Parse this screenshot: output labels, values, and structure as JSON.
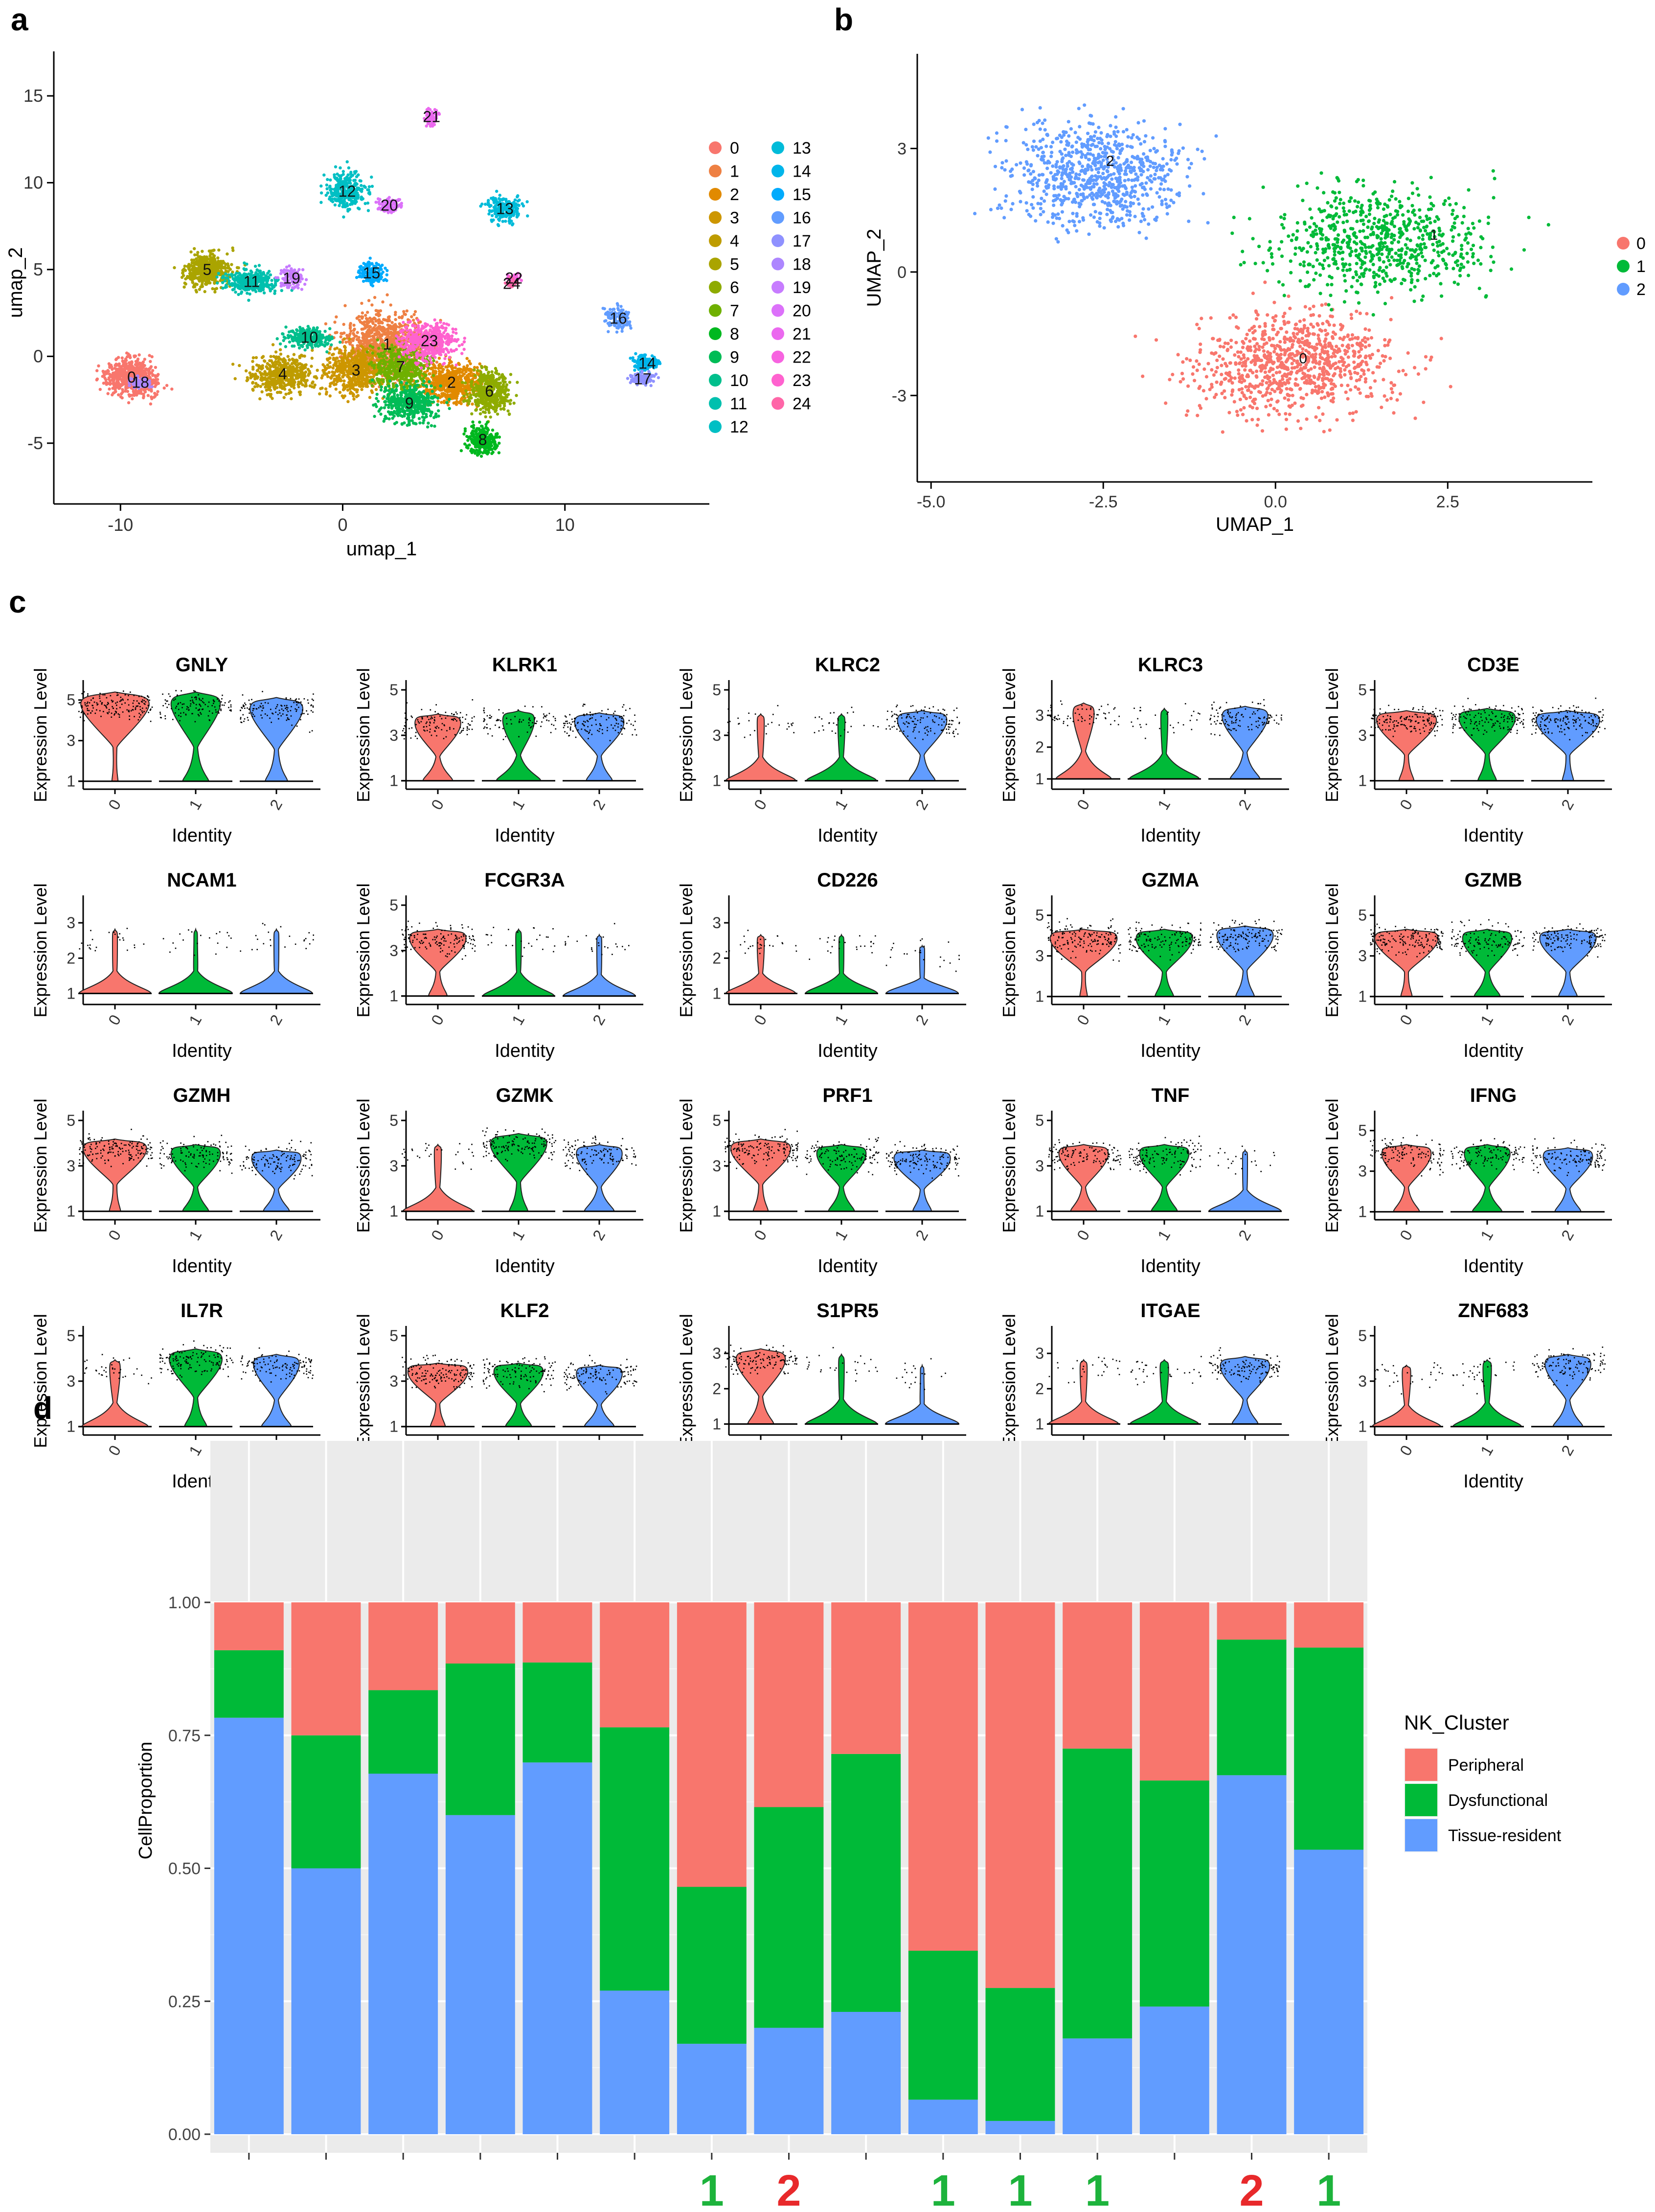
{
  "panel_labels": [
    "a",
    "b",
    "c",
    "d"
  ],
  "colors": {
    "c0": "#F8766D",
    "c1": "#00BA38",
    "c2": "#619CFF",
    "grid_bg": "#EBEBEB",
    "grid_line": "#FFFFFF",
    "red_mark": "#E8292B",
    "green_mark": "#1DB33C"
  },
  "chart_data": [
    {
      "id": "a",
      "type": "scatter",
      "xlabel": "umap_1",
      "ylabel": "umap_2",
      "xticks": [
        "-10",
        "0",
        "10"
      ],
      "yticks": [
        "-5",
        "0",
        "5",
        "10",
        "15"
      ],
      "xlim": [
        -13,
        16.5
      ],
      "ylim": [
        -8.5,
        17
      ],
      "legend": [
        "0",
        "1",
        "2",
        "3",
        "4",
        "5",
        "6",
        "7",
        "8",
        "9",
        "10",
        "11",
        "12",
        "13",
        "14",
        "15",
        "16",
        "17",
        "18",
        "19",
        "20",
        "21",
        "22",
        "23",
        "24"
      ],
      "legend_colors": [
        "#F8766D",
        "#EE8043",
        "#E18A00",
        "#CD9600",
        "#BE9C00",
        "#AAA400",
        "#8EAB00",
        "#6FB000",
        "#00B81F",
        "#00BC56",
        "#00BF8C",
        "#00C0AE",
        "#00BFC4",
        "#00BBD9",
        "#00B5EA",
        "#00ABFD",
        "#619CFF",
        "#8F91FF",
        "#AD86FF",
        "#C77CFF",
        "#DC71FA",
        "#EB69EF",
        "#F763E0",
        "#FF62CF",
        "#FF66A8"
      ],
      "cluster_label_points": [
        {
          "id": "0",
          "x": -9.5,
          "y": -1.2
        },
        {
          "id": "18",
          "x": -9.1,
          "y": -1.5
        },
        {
          "id": "1",
          "x": 2,
          "y": 0.7
        },
        {
          "id": "2",
          "x": 4.9,
          "y": -1.5
        },
        {
          "id": "3",
          "x": 0.6,
          "y": -0.8
        },
        {
          "id": "4",
          "x": -2.7,
          "y": -1.0
        },
        {
          "id": "5",
          "x": -6.1,
          "y": 5.0
        },
        {
          "id": "6",
          "x": 6.6,
          "y": -2.0
        },
        {
          "id": "7",
          "x": 2.6,
          "y": -0.6
        },
        {
          "id": "8",
          "x": 6.3,
          "y": -4.8
        },
        {
          "id": "9",
          "x": 3.0,
          "y": -2.7
        },
        {
          "id": "10",
          "x": -1.5,
          "y": 1.1
        },
        {
          "id": "11",
          "x": -4.1,
          "y": 4.3
        },
        {
          "id": "12",
          "x": 0.2,
          "y": 9.5
        },
        {
          "id": "13",
          "x": 7.3,
          "y": 8.5
        },
        {
          "id": "14",
          "x": 13.7,
          "y": -0.4
        },
        {
          "id": "15",
          "x": 1.3,
          "y": 4.8
        },
        {
          "id": "16",
          "x": 12.4,
          "y": 2.2
        },
        {
          "id": "17",
          "x": 13.5,
          "y": -1.3
        },
        {
          "id": "19",
          "x": -2.3,
          "y": 4.5
        },
        {
          "id": "20",
          "x": 2.1,
          "y": 8.7
        },
        {
          "id": "21",
          "x": 4.0,
          "y": 13.8
        },
        {
          "id": "22",
          "x": 7.7,
          "y": 4.5
        },
        {
          "id": "23",
          "x": 3.9,
          "y": 0.9
        },
        {
          "id": "24",
          "x": 7.6,
          "y": 4.2
        }
      ]
    },
    {
      "id": "b",
      "type": "scatter",
      "xlabel": "UMAP_1",
      "ylabel": "UMAP_2",
      "xticks": [
        "-5.0",
        "-2.5",
        "0.0",
        "2.5"
      ],
      "yticks": [
        "-3",
        "0",
        "3"
      ],
      "xlim": [
        -5.2,
        4.6
      ],
      "ylim": [
        -5.1,
        5.3
      ],
      "legend": [
        "0",
        "1",
        "2"
      ],
      "cluster_label_points": [
        {
          "id": "0",
          "x": 0.4,
          "y": -2.1
        },
        {
          "id": "1",
          "x": 2.3,
          "y": 0.9
        },
        {
          "id": "2",
          "x": -2.4,
          "y": 2.7
        }
      ]
    },
    {
      "id": "c",
      "type": "violin",
      "xlabel": "Identity",
      "ylabel": "Expression Level",
      "categories": [
        "0",
        "1",
        "2"
      ],
      "genes": [
        {
          "name": "GNLY",
          "ymax": "5.5",
          "yticks": [
            "1",
            "3",
            "5"
          ],
          "zero_frac": [
            0.03,
            0.3,
            0.25
          ],
          "level": [
            0.85,
            0.85,
            0.8
          ]
        },
        {
          "name": "KLRK1",
          "ymax": "5",
          "yticks": [
            "1",
            "3",
            "5"
          ],
          "zero_frac": [
            0.35,
            0.55,
            0.3
          ],
          "level": [
            0.65,
            0.68,
            0.66
          ]
        },
        {
          "name": "KLRC2",
          "ymax": "5",
          "yticks": [
            "1",
            "3",
            "5"
          ],
          "zero_frac": [
            0.9,
            0.9,
            0.3
          ],
          "level": [
            0.65,
            0.65,
            0.68
          ]
        },
        {
          "name": "KLRC3",
          "ymax": "3.8",
          "yticks": [
            "1",
            "2",
            "3"
          ],
          "zero_frac": [
            0.7,
            0.9,
            0.35
          ],
          "level": [
            0.75,
            0.7,
            0.72
          ]
        },
        {
          "name": "CD3E",
          "ymax": "5",
          "yticks": [
            "1",
            "3",
            "5"
          ],
          "zero_frac": [
            0.15,
            0.2,
            0.1
          ],
          "level": [
            0.68,
            0.7,
            0.68
          ]
        },
        {
          "name": "NCAM1",
          "ymax": "3.5",
          "yticks": [
            "1",
            "2",
            "3"
          ],
          "zero_frac": [
            0.93,
            0.95,
            0.93
          ],
          "level": [
            0.65,
            0.65,
            0.65
          ]
        },
        {
          "name": "FCGR3A",
          "ymax": "5",
          "yticks": [
            "1",
            "3",
            "5"
          ],
          "zero_frac": [
            0.2,
            0.92,
            0.93
          ],
          "level": [
            0.65,
            0.65,
            0.6
          ]
        },
        {
          "name": "CD226",
          "ymax": "3.5",
          "yticks": [
            "1",
            "2",
            "3"
          ],
          "zero_frac": [
            0.9,
            0.93,
            0.93
          ],
          "level": [
            0.6,
            0.6,
            0.5
          ]
        },
        {
          "name": "GZMA",
          "ymax": "5.5",
          "yticks": [
            "1",
            "3",
            "5"
          ],
          "zero_frac": [
            0.05,
            0.2,
            0.2
          ],
          "level": [
            0.65,
            0.65,
            0.68
          ]
        },
        {
          "name": "GZMB",
          "ymax": "5.5",
          "yticks": [
            "1",
            "3",
            "5"
          ],
          "zero_frac": [
            0.1,
            0.3,
            0.2
          ],
          "level": [
            0.65,
            0.65,
            0.65
          ]
        },
        {
          "name": "GZMH",
          "ymax": "5",
          "yticks": [
            "1",
            "3",
            "5"
          ],
          "zero_frac": [
            0.1,
            0.3,
            0.3
          ],
          "level": [
            0.7,
            0.65,
            0.6
          ]
        },
        {
          "name": "GZMK",
          "ymax": "5",
          "yticks": [
            "1",
            "3",
            "5"
          ],
          "zero_frac": [
            0.9,
            0.2,
            0.35
          ],
          "level": [
            0.65,
            0.75,
            0.65
          ]
        },
        {
          "name": "PRF1",
          "ymax": "5",
          "yticks": [
            "1",
            "3",
            "5"
          ],
          "zero_frac": [
            0.15,
            0.3,
            0.2
          ],
          "level": [
            0.7,
            0.65,
            0.6
          ]
        },
        {
          "name": "TNF",
          "ymax": "5",
          "yticks": [
            "1",
            "3",
            "5"
          ],
          "zero_frac": [
            0.3,
            0.3,
            0.93
          ],
          "level": [
            0.65,
            0.65,
            0.6
          ]
        },
        {
          "name": "IFNG",
          "ymax": "5.5",
          "yticks": [
            "1",
            "3",
            "5"
          ],
          "zero_frac": [
            0.3,
            0.35,
            0.3
          ],
          "level": [
            0.65,
            0.65,
            0.62
          ]
        },
        {
          "name": "IL7R",
          "ymax": "5",
          "yticks": [
            "1",
            "3",
            "5"
          ],
          "zero_frac": [
            0.85,
            0.25,
            0.35
          ],
          "level": [
            0.65,
            0.75,
            0.7
          ]
        },
        {
          "name": "KLF2",
          "ymax": "5",
          "yticks": [
            "1",
            "3",
            "5"
          ],
          "zero_frac": [
            0.15,
            0.3,
            0.35
          ],
          "level": [
            0.62,
            0.62,
            0.6
          ]
        },
        {
          "name": "S1PR5",
          "ymax": "3.5",
          "yticks": [
            "1",
            "2",
            "3"
          ],
          "zero_frac": [
            0.3,
            0.92,
            0.95
          ],
          "level": [
            0.75,
            0.7,
            0.6
          ]
        },
        {
          "name": "ITGAE",
          "ymax": "3.5",
          "yticks": [
            "1",
            "2",
            "3"
          ],
          "zero_frac": [
            0.9,
            0.88,
            0.3
          ],
          "level": [
            0.65,
            0.65,
            0.68
          ]
        },
        {
          "name": "ZNF683",
          "ymax": "5",
          "yticks": [
            "1",
            "3",
            "5"
          ],
          "zero_frac": [
            0.88,
            0.88,
            0.35
          ],
          "level": [
            0.6,
            0.65,
            0.7
          ]
        }
      ]
    },
    {
      "id": "d",
      "type": "bar",
      "stacked": true,
      "title": "",
      "xlabel": "",
      "ylabel": "CellProportion",
      "ylim": [
        0,
        1
      ],
      "yticks": [
        "0.00",
        "0.25",
        "0.50",
        "0.75",
        "1.00"
      ],
      "legend_title": "NK_Cluster",
      "series": [
        {
          "name": "Peripheral",
          "values": [
            0.09,
            0.25,
            0.165,
            0.115,
            0.113,
            0.235,
            0.535,
            0.385,
            0.285,
            0.655,
            0.725,
            0.275,
            0.335,
            0.07,
            0.085
          ]
        },
        {
          "name": "Dysfunctional",
          "values": [
            0.127,
            0.25,
            0.157,
            0.285,
            0.188,
            0.495,
            0.295,
            0.415,
            0.485,
            0.28,
            0.25,
            0.545,
            0.425,
            0.255,
            0.38
          ]
        },
        {
          "name": "Tissue-resident",
          "values": [
            0.783,
            0.5,
            0.678,
            0.6,
            0.699,
            0.27,
            0.17,
            0.2,
            0.23,
            0.065,
            0.025,
            0.18,
            0.24,
            0.675,
            0.535
          ]
        }
      ],
      "bar_marks": [
        "",
        "",
        "",
        "",
        "",
        "",
        "1",
        "2",
        "",
        "1",
        "1",
        "1",
        "",
        "2",
        "1"
      ]
    }
  ]
}
